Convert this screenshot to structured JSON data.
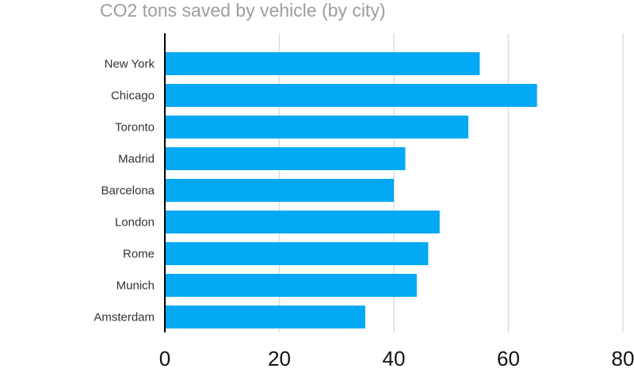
{
  "chart_data": {
    "type": "bar",
    "orientation": "horizontal",
    "title": "CO2 tons saved by vehicle (by city)",
    "xlabel": "",
    "ylabel": "",
    "categories": [
      "New York",
      "Chicago",
      "Toronto",
      "Madrid",
      "Barcelona",
      "London",
      "Rome",
      "Munich",
      "Amsterdam"
    ],
    "values": [
      55,
      65,
      53,
      42,
      40,
      48,
      46,
      44,
      35
    ],
    "xlim": [
      0,
      80
    ],
    "xticks": [
      "0",
      "20",
      "40",
      "60",
      "80"
    ],
    "grid": true,
    "legend": "none",
    "bar_color": "#03a9f4",
    "grid_color": "#dddddd",
    "axis_color": "#000000"
  }
}
